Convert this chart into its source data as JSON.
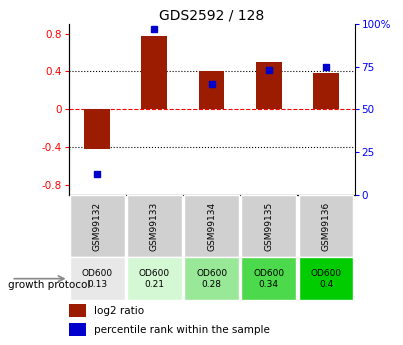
{
  "title": "GDS2592 / 128",
  "samples": [
    "GSM99132",
    "GSM99133",
    "GSM99134",
    "GSM99135",
    "GSM99136"
  ],
  "log2_ratio": [
    -0.42,
    0.78,
    0.41,
    0.5,
    0.38
  ],
  "percentile_rank": [
    12,
    97,
    65,
    73,
    75
  ],
  "growth_protocol_labels": [
    "OD600\n0.13",
    "OD600\n0.21",
    "OD600\n0.28",
    "OD600\n0.34",
    "OD600\n0.4"
  ],
  "growth_protocol_colors": [
    "#e8e8e8",
    "#d4f7d4",
    "#98e898",
    "#4cd94c",
    "#00cc00"
  ],
  "bar_color": "#9b1c00",
  "dot_color": "#0000cc",
  "ylim_left": [
    -0.9,
    0.9
  ],
  "ylim_right": [
    0,
    100
  ],
  "y_ticks_left": [
    -0.8,
    -0.4,
    0.0,
    0.4,
    0.8
  ],
  "y_ticks_right": [
    0,
    25,
    50,
    75,
    100
  ],
  "y_ticks_right_labels": [
    "0",
    "25",
    "50",
    "75",
    "100%"
  ],
  "background_color": "#ffffff",
  "sample_label_bg": "#d0d0d0",
  "figsize": [
    4.03,
    3.45
  ],
  "dpi": 100
}
